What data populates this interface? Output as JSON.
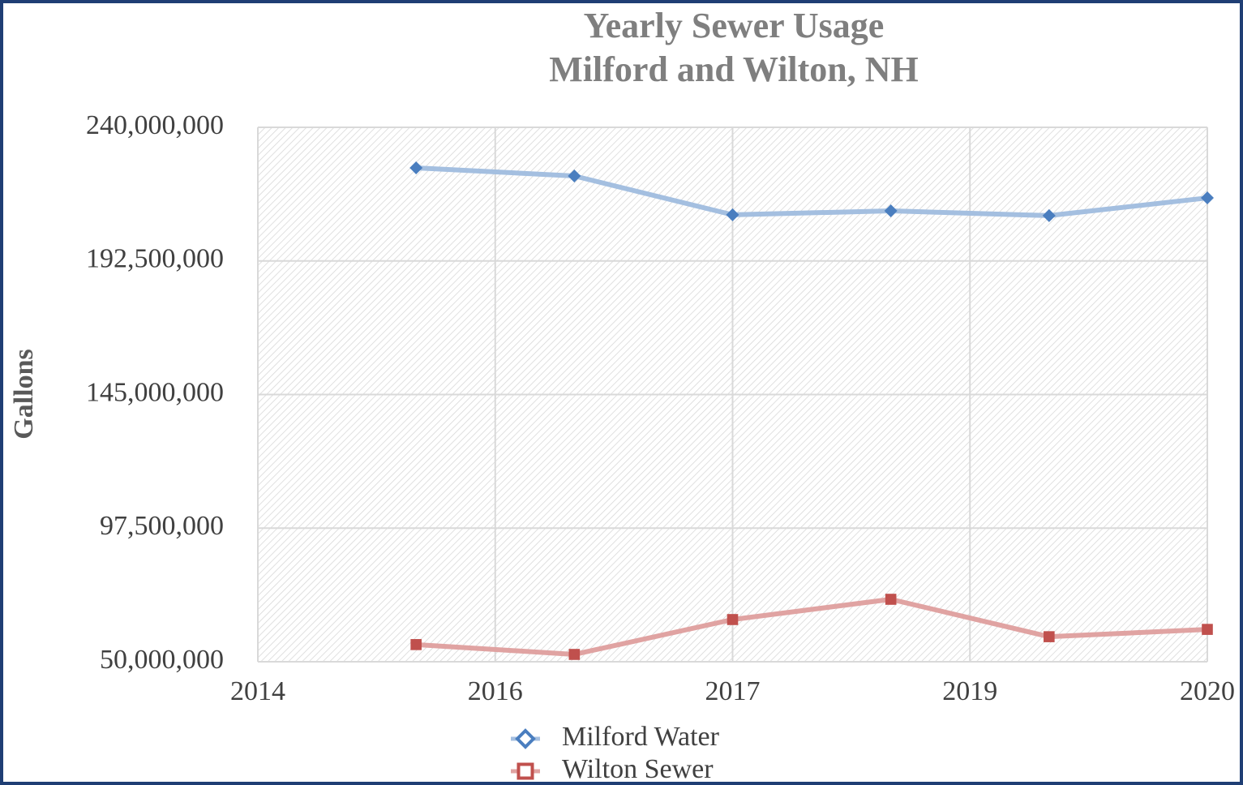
{
  "chart_data": {
    "type": "line",
    "title": "Yearly Sewer Usage",
    "subtitle": "Milford and Wilton, NH",
    "y_label": "Gallons",
    "x": [
      2015,
      2016,
      2017,
      2018,
      2019,
      2020
    ],
    "xlim": [
      2014,
      2020
    ],
    "xticks": [
      2014,
      {
        "value": 2015.5,
        "label": "2016"
      },
      2017,
      {
        "value": 2018.5,
        "label": "2019"
      },
      2020
    ],
    "ylim": [
      50000000,
      240000000
    ],
    "yticks": [
      {
        "value": 50000000,
        "label": "50,000,000"
      },
      {
        "value": 97500000,
        "label": "97,500,000"
      },
      {
        "value": 145000000,
        "label": "145,000,000"
      },
      {
        "value": 192500000,
        "label": "192,500,000"
      },
      {
        "value": 240000000,
        "label": "240,000,000"
      }
    ],
    "grid": true,
    "legend": "bottom",
    "series": [
      {
        "name": "Milford Water",
        "color": "#4a7ebf",
        "line_color": "#a4bfe0",
        "marker": "diamond",
        "values": [
          225600000,
          222700000,
          208900000,
          210300000,
          208600000,
          214900000
        ]
      },
      {
        "name": "Wilton Sewer",
        "color": "#c0504d",
        "line_color": "#e0a3a2",
        "marker": "square",
        "values": [
          56100000,
          52600000,
          65000000,
          72200000,
          58900000,
          61500000
        ]
      }
    ]
  }
}
